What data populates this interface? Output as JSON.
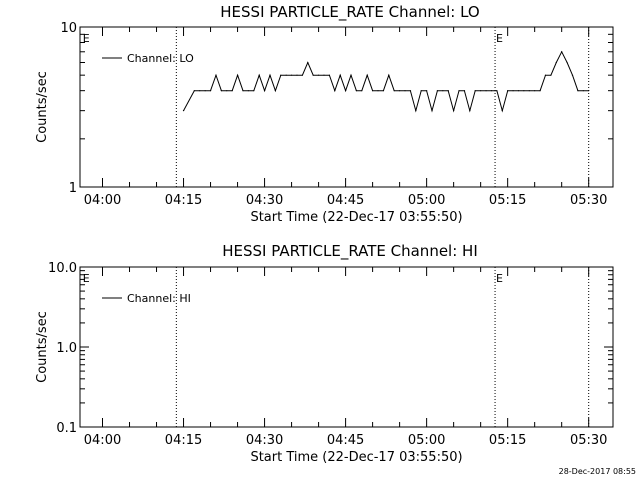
{
  "footer": {
    "timestamp": "28-Dec-2017 08:55"
  },
  "chart_data": [
    {
      "type": "line",
      "title": "HESSI PARTICLE_RATE Channel: LO",
      "xlabel": "Start Time (22-Dec-17 03:55:50)",
      "ylabel": "Counts/sec",
      "yscale": "log",
      "xlim": [
        "03:55:50",
        "05:34:30"
      ],
      "ylim": [
        1,
        10
      ],
      "x_ticks": [
        "04:00",
        "04:15",
        "04:30",
        "04:45",
        "05:00",
        "05:15",
        "05:30"
      ],
      "y_ticks": [
        "1",
        "10"
      ],
      "legend": {
        "placement": "top-left",
        "label": "Channel: LO"
      },
      "annotations": [
        {
          "label": "E",
          "x": "03:56:10"
        },
        {
          "label": "E",
          "x": "05:12:40"
        }
      ],
      "vlines": [
        "04:13:40",
        "05:12:40",
        "05:30:00"
      ],
      "series": [
        {
          "name": "Channel: LO",
          "x": [
            "04:15",
            "04:17",
            "04:18",
            "04:19",
            "04:20",
            "04:21",
            "04:22",
            "04:23",
            "04:24",
            "04:25",
            "04:26",
            "04:27",
            "04:28",
            "04:29",
            "04:30",
            "04:31",
            "04:32",
            "04:33",
            "04:34",
            "04:35",
            "04:36",
            "04:37",
            "04:38",
            "04:39",
            "04:40",
            "04:41",
            "04:42",
            "04:43",
            "04:44",
            "04:45",
            "04:46",
            "04:47",
            "04:48",
            "04:49",
            "04:50",
            "04:51",
            "04:52",
            "04:53",
            "04:54",
            "04:55",
            "04:56",
            "04:57",
            "04:58",
            "04:59",
            "05:00",
            "05:01",
            "05:02",
            "05:03",
            "05:04",
            "05:05",
            "05:06",
            "05:07",
            "05:08",
            "05:09",
            "05:10",
            "05:11",
            "05:12",
            "05:13",
            "05:14",
            "05:15",
            "05:16",
            "05:17",
            "05:18",
            "05:19",
            "05:20",
            "05:21",
            "05:22",
            "05:23",
            "05:24",
            "05:25",
            "05:26",
            "05:27",
            "05:28",
            "05:29",
            "05:30"
          ],
          "y": [
            3,
            4,
            4,
            4,
            4,
            5,
            4,
            4,
            4,
            5,
            4,
            4,
            4,
            5,
            4,
            5,
            4,
            5,
            5,
            5,
            5,
            5,
            6,
            5,
            5,
            5,
            5,
            4,
            5,
            4,
            5,
            4,
            4,
            5,
            4,
            4,
            4,
            5,
            4,
            4,
            4,
            4,
            3,
            4,
            4,
            3,
            4,
            4,
            4,
            3,
            4,
            4,
            3,
            4,
            4,
            4,
            4,
            4,
            3,
            4,
            4,
            4,
            4,
            4,
            4,
            4,
            5,
            5,
            6,
            7,
            6,
            5,
            4,
            4,
            4
          ]
        }
      ]
    },
    {
      "type": "line",
      "title": "HESSI PARTICLE_RATE Channel: HI",
      "xlabel": "Start Time (22-Dec-17 03:55:50)",
      "ylabel": "Counts/sec",
      "yscale": "log",
      "xlim": [
        "03:55:50",
        "05:34:30"
      ],
      "ylim": [
        0.1,
        10
      ],
      "x_ticks": [
        "04:00",
        "04:15",
        "04:30",
        "04:45",
        "05:00",
        "05:15",
        "05:30"
      ],
      "y_ticks": [
        "0.1",
        "1.0",
        "10.0"
      ],
      "legend": {
        "placement": "top-left",
        "label": "Channel: HI"
      },
      "annotations": [
        {
          "label": "E",
          "x": "03:56:10"
        },
        {
          "label": "E",
          "x": "05:12:40"
        }
      ],
      "vlines": [
        "04:13:40",
        "05:12:40",
        "05:30:00"
      ],
      "series": [
        {
          "name": "Channel: HI",
          "x": [],
          "y": []
        }
      ]
    }
  ]
}
